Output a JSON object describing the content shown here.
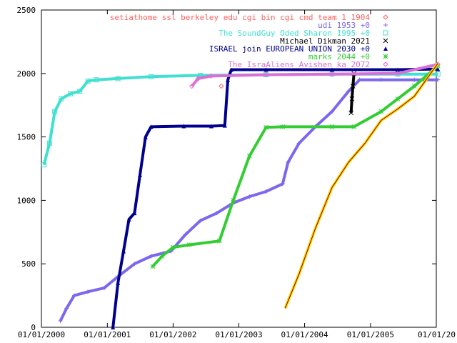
{
  "chart_data": {
    "type": "line",
    "title": "",
    "xlabel": "",
    "ylabel": "",
    "x_ticks": [
      "01/01/2000",
      "01/01/2001",
      "01/01/2002",
      "01/01/2003",
      "01/01/2004",
      "01/01/2005",
      "01/01/20"
    ],
    "y_ticks": [
      "0",
      "500",
      "1000",
      "1500",
      "2000",
      "2500"
    ],
    "xlim": [
      "2000-01-01",
      "2006-01-01"
    ],
    "ylim": [
      0,
      2500
    ],
    "legend_position": "top-right",
    "series": [
      {
        "name": "setiathome ssl berkeley edu cgi bin cgi cmd team 1 1904",
        "color": "#ff6060",
        "marker": "diamond",
        "points": [
          [
            "2002-09-25",
            1900
          ]
        ]
      },
      {
        "name": "udi 1953 +0",
        "color": "#7b68ee",
        "marker": "plus",
        "points": [
          [
            "2000-04-15",
            50
          ],
          [
            "2000-05-20",
            150
          ],
          [
            "2000-07-01",
            250
          ],
          [
            "2000-09-15",
            280
          ],
          [
            "2000-12-15",
            310
          ],
          [
            "2001-03-01",
            400
          ],
          [
            "2001-06-01",
            500
          ],
          [
            "2001-09-01",
            560
          ],
          [
            "2001-12-20",
            600
          ],
          [
            "2002-03-10",
            730
          ],
          [
            "2002-06-01",
            840
          ],
          [
            "2002-09-01",
            900
          ],
          [
            "2002-12-01",
            980
          ],
          [
            "2003-03-01",
            1030
          ],
          [
            "2003-06-01",
            1070
          ],
          [
            "2003-09-01",
            1130
          ],
          [
            "2003-10-01",
            1300
          ],
          [
            "2003-12-01",
            1450
          ],
          [
            "2004-03-01",
            1580
          ],
          [
            "2004-06-01",
            1700
          ],
          [
            "2004-09-01",
            1860
          ],
          [
            "2004-11-01",
            1950
          ],
          [
            "2005-03-01",
            1950
          ],
          [
            "2005-09-01",
            1950
          ],
          [
            "2006-01-10",
            1950
          ]
        ]
      },
      {
        "name": "The SoundGuy   Oded Sharon 1995 +0",
        "color": "#40e0d0",
        "marker": "square",
        "points": [
          [
            "2000-01-15",
            1280
          ],
          [
            "2000-02-15",
            1450
          ],
          [
            "2000-03-15",
            1700
          ],
          [
            "2000-04-20",
            1800
          ],
          [
            "2000-06-10",
            1840
          ],
          [
            "2000-08-01",
            1860
          ],
          [
            "2000-09-15",
            1940
          ],
          [
            "2000-11-01",
            1950
          ],
          [
            "2001-03-01",
            1960
          ],
          [
            "2001-09-01",
            1975
          ],
          [
            "2002-06-01",
            1985
          ],
          [
            "2003-06-01",
            1990
          ],
          [
            "2004-06-01",
            1995
          ],
          [
            "2005-06-01",
            1995
          ],
          [
            "2006-01-10",
            1995
          ]
        ]
      },
      {
        "name": "Michael Dikman 2021",
        "color": "#000000",
        "marker": "cross",
        "points": [
          [
            "2004-09-15",
            1690
          ],
          [
            "2004-09-20",
            1800
          ],
          [
            "2004-09-25",
            1900
          ],
          [
            "2004-10-01",
            2000
          ]
        ]
      },
      {
        "name": "ISRAEL join EUROPEAN UNION 2030 +0",
        "color": "#00008b",
        "marker": "triangle",
        "points": [
          [
            "2001-02-01",
            0
          ],
          [
            "2001-03-01",
            350
          ],
          [
            "2001-04-01",
            600
          ],
          [
            "2001-05-01",
            850
          ],
          [
            "2001-06-01",
            900
          ],
          [
            "2001-07-01",
            1200
          ],
          [
            "2001-08-01",
            1500
          ],
          [
            "2001-09-01",
            1580
          ],
          [
            "2002-03-01",
            1585
          ],
          [
            "2002-08-01",
            1585
          ],
          [
            "2002-10-15",
            1590
          ],
          [
            "2002-11-01",
            1950
          ],
          [
            "2002-11-20",
            2030
          ],
          [
            "2003-06-01",
            2030
          ],
          [
            "2004-06-01",
            2030
          ],
          [
            "2005-06-01",
            2030
          ],
          [
            "2006-01-10",
            2035
          ]
        ]
      },
      {
        "name": "marks 2044 +0",
        "color": "#32cd32",
        "marker": "star",
        "points": [
          [
            "2001-09-10",
            480
          ],
          [
            "2001-11-01",
            560
          ],
          [
            "2002-01-01",
            630
          ],
          [
            "2002-04-01",
            650
          ],
          [
            "2002-09-15",
            680
          ],
          [
            "2002-12-01",
            1000
          ],
          [
            "2003-03-01",
            1350
          ],
          [
            "2003-06-01",
            1575
          ],
          [
            "2003-09-01",
            1580
          ],
          [
            "2004-06-01",
            1580
          ],
          [
            "2004-10-01",
            1580
          ],
          [
            "2005-03-01",
            1700
          ],
          [
            "2005-06-01",
            1800
          ],
          [
            "2005-09-01",
            1900
          ],
          [
            "2006-01-10",
            2060
          ]
        ]
      },
      {
        "name": "The IsraAliens Avishen ka 2072",
        "color": "#da70d6",
        "marker": "diamond",
        "points": [
          [
            "2002-04-15",
            1900
          ],
          [
            "2002-05-20",
            1960
          ],
          [
            "2002-08-01",
            1980
          ],
          [
            "2003-06-01",
            1990
          ],
          [
            "2004-06-01",
            1995
          ],
          [
            "2005-06-01",
            2000
          ],
          [
            "2006-01-10",
            2072
          ]
        ]
      },
      {
        "name": "",
        "color": "#ffd700",
        "marker": "none",
        "points": [
          [
            "2003-09-15",
            150
          ],
          [
            "2003-12-01",
            420
          ],
          [
            "2004-03-01",
            780
          ],
          [
            "2004-06-01",
            1100
          ],
          [
            "2004-09-01",
            1300
          ],
          [
            "2004-12-01",
            1450
          ],
          [
            "2005-03-01",
            1630
          ],
          [
            "2005-06-01",
            1720
          ],
          [
            "2005-09-01",
            1820
          ],
          [
            "2006-01-10",
            2080
          ]
        ]
      }
    ]
  }
}
